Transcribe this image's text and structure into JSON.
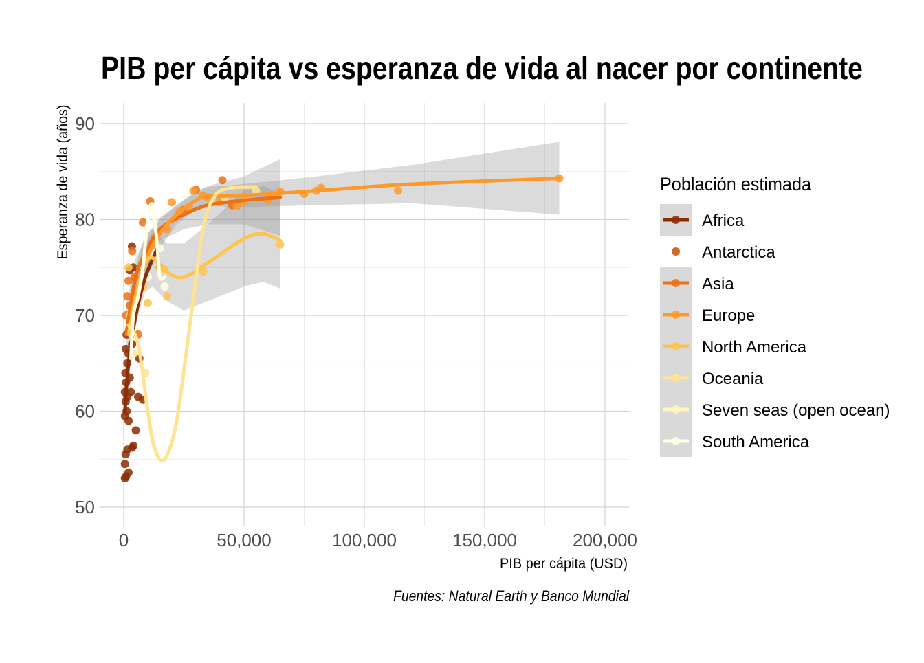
{
  "chart_data": {
    "type": "scatter",
    "title": "PIB per cápita vs esperanza de vida al nacer por continente",
    "xlabel": "PIB per cápita  (USD)",
    "ylabel": "Esperanza de vida (años)",
    "caption": "Fuentes: Natural Earth y Banco Mundial",
    "xlim": [
      -10000,
      210000
    ],
    "ylim": [
      48,
      92
    ],
    "x_ticks": [
      0,
      50000,
      100000,
      150000,
      200000
    ],
    "x_tick_labels": [
      "0",
      "50,000",
      "100,000",
      "150,000",
      "200,000"
    ],
    "y_ticks": [
      50,
      60,
      70,
      80,
      90
    ],
    "y_tick_labels": [
      "50",
      "60",
      "70",
      "80",
      "90"
    ],
    "grid": true,
    "legend": {
      "title": "Población estimada",
      "placement": "right",
      "entries": [
        "Africa",
        "Antarctica",
        "Asia",
        "Europe",
        "North America",
        "Oceania",
        "Seven seas (open ocean)",
        "South America"
      ]
    },
    "series": [
      {
        "name": "Africa",
        "color": "#8c2d04",
        "points": [
          [
            500,
            53
          ],
          [
            1000,
            53.2
          ],
          [
            2000,
            53.6
          ],
          [
            500,
            54.5
          ],
          [
            800,
            55.5
          ],
          [
            1500,
            56
          ],
          [
            3500,
            56.2
          ],
          [
            4000,
            56.4
          ],
          [
            5000,
            58
          ],
          [
            500,
            59.5
          ],
          [
            1200,
            60
          ],
          [
            2000,
            59
          ],
          [
            800,
            61
          ],
          [
            1500,
            61.5
          ],
          [
            3000,
            62
          ],
          [
            6000,
            61.5
          ],
          [
            8000,
            61.2
          ],
          [
            500,
            62
          ],
          [
            1000,
            63
          ],
          [
            2500,
            63.5
          ],
          [
            700,
            64
          ],
          [
            1500,
            65
          ],
          [
            2000,
            66
          ],
          [
            6500,
            65.5
          ],
          [
            900,
            66.5
          ],
          [
            3500,
            67
          ],
          [
            1200,
            68
          ],
          [
            2500,
            74.7
          ],
          [
            3400,
            77.2
          ],
          [
            4000,
            75
          ]
        ],
        "smooth": [
          [
            500,
            60
          ],
          [
            2000,
            65
          ],
          [
            5000,
            70
          ],
          [
            9000,
            74
          ],
          [
            14000,
            77
          ]
        ]
      },
      {
        "name": "Antarctica",
        "color": "#cc4c02",
        "points": []
      },
      {
        "name": "Asia",
        "color": "#ec7014",
        "points": [
          [
            1000,
            70
          ],
          [
            1500,
            72
          ],
          [
            2000,
            73.6
          ],
          [
            3500,
            76.7
          ],
          [
            6000,
            68
          ],
          [
            8000,
            79.7
          ],
          [
            11000,
            81.9
          ],
          [
            13000,
            78
          ],
          [
            25000,
            81
          ],
          [
            30000,
            83.1
          ],
          [
            41000,
            84.1
          ],
          [
            45000,
            81.5
          ],
          [
            2500,
            71
          ],
          [
            4500,
            74
          ]
        ],
        "smooth": [
          [
            1000,
            68
          ],
          [
            5000,
            74
          ],
          [
            10000,
            77
          ],
          [
            15000,
            79
          ],
          [
            25000,
            80.5
          ],
          [
            35000,
            81.5
          ],
          [
            50000,
            82
          ],
          [
            65000,
            82.3
          ]
        ],
        "band": [
          3,
          2,
          1.5,
          1.2,
          1.5,
          2,
          2.5,
          4
        ]
      },
      {
        "name": "Europe",
        "color": "#fe9929",
        "points": [
          [
            10000,
            76
          ],
          [
            15000,
            75
          ],
          [
            20000,
            81.8
          ],
          [
            29000,
            83
          ],
          [
            33000,
            82.5
          ],
          [
            35000,
            82.3
          ],
          [
            40000,
            82
          ],
          [
            47000,
            81.4
          ],
          [
            50000,
            81.9
          ],
          [
            60000,
            82
          ],
          [
            65000,
            82.9
          ],
          [
            75000,
            82.7
          ],
          [
            80000,
            83
          ],
          [
            82000,
            83.3
          ],
          [
            114000,
            83
          ],
          [
            181000,
            84.3
          ],
          [
            18000,
            79
          ],
          [
            23000,
            80.8
          ],
          [
            27000,
            81.3
          ]
        ],
        "smooth": [
          [
            3000,
            70
          ],
          [
            8000,
            75
          ],
          [
            15000,
            78.5
          ],
          [
            22000,
            80.5
          ],
          [
            30000,
            82
          ],
          [
            35000,
            82.4
          ],
          [
            50000,
            82.5
          ],
          [
            80000,
            83
          ],
          [
            120000,
            83.7
          ],
          [
            181000,
            84.3
          ]
        ],
        "band": [
          3,
          2,
          1.5,
          1,
          1,
          1,
          1.2,
          1.5,
          2,
          3.8
        ]
      },
      {
        "name": "North America",
        "color": "#fec44f",
        "points": [
          [
            2000,
            75
          ],
          [
            3000,
            70
          ],
          [
            5000,
            72
          ],
          [
            8000,
            73
          ],
          [
            10000,
            71.3
          ],
          [
            17000,
            74.8
          ],
          [
            18000,
            72
          ],
          [
            33000,
            74.6
          ],
          [
            65000,
            77.4
          ]
        ],
        "smooth": [
          [
            2000,
            68
          ],
          [
            6000,
            73
          ],
          [
            9000,
            75.5
          ],
          [
            12000,
            76
          ],
          [
            18000,
            74.5
          ],
          [
            25000,
            74
          ],
          [
            35000,
            75.5
          ],
          [
            50000,
            78
          ],
          [
            58000,
            78.5
          ],
          [
            65000,
            77.8
          ]
        ],
        "band": [
          3,
          3,
          3,
          3,
          3,
          3.5,
          4,
          5,
          5,
          5
        ]
      },
      {
        "name": "Oceania",
        "color": "#fee391",
        "points": [
          [
            2500,
            70
          ],
          [
            4000,
            66
          ],
          [
            9000,
            64
          ],
          [
            42000,
            82.3
          ],
          [
            55000,
            83
          ]
        ],
        "smooth": [
          [
            2000,
            69
          ],
          [
            6000,
            67
          ],
          [
            10000,
            60
          ],
          [
            13000,
            56
          ],
          [
            17000,
            55
          ],
          [
            22000,
            59
          ],
          [
            28000,
            70
          ],
          [
            33000,
            79
          ],
          [
            38000,
            82.5
          ],
          [
            45000,
            83.3
          ],
          [
            55000,
            83.4
          ]
        ]
      },
      {
        "name": "Seven seas (open ocean)",
        "color": "#fff7bc",
        "points": []
      },
      {
        "name": "South America",
        "color": "#ffffe5",
        "points": [
          [
            3500,
            68
          ],
          [
            7000,
            75
          ],
          [
            10000,
            74
          ],
          [
            12000,
            76.5
          ],
          [
            15000,
            77
          ],
          [
            17000,
            73
          ]
        ],
        "smooth": [
          [
            3000,
            65.5
          ],
          [
            4000,
            70
          ],
          [
            6000,
            72
          ],
          [
            8000,
            75
          ],
          [
            10000,
            80
          ],
          [
            12000,
            81.5
          ],
          [
            14000,
            77
          ],
          [
            15000,
            74
          ],
          [
            17000,
            74
          ]
        ]
      }
    ]
  }
}
